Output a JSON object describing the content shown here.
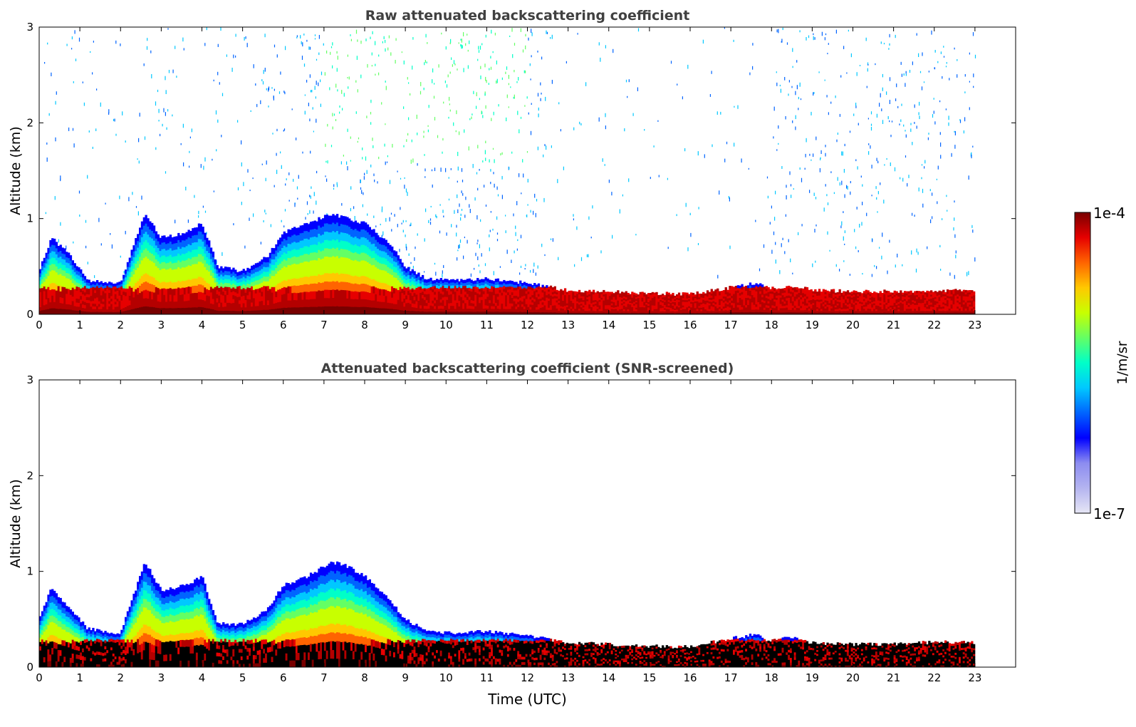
{
  "chart_data": [
    {
      "type": "heatmap",
      "title": "Raw attenuated backscattering coefficient",
      "xlabel": "",
      "ylabel": "Altitude (km)",
      "xlim": [
        0,
        24
      ],
      "ylim": [
        0,
        3
      ],
      "xticks": [
        "0",
        "1",
        "2",
        "3",
        "4",
        "5",
        "6",
        "7",
        "8",
        "9",
        "10",
        "11",
        "12",
        "13",
        "14",
        "15",
        "16",
        "17",
        "18",
        "19",
        "20",
        "21",
        "22",
        "23"
      ],
      "yticks": [
        "0",
        "1",
        "2",
        "3"
      ],
      "data_end_hour": 23,
      "boundary_layer_top_km": [
        [
          0,
          0.45
        ],
        [
          0.3,
          0.8
        ],
        [
          0.8,
          0.6
        ],
        [
          1.2,
          0.35
        ],
        [
          2,
          0.33
        ],
        [
          2.6,
          1.05
        ],
        [
          3,
          0.8
        ],
        [
          3.6,
          0.85
        ],
        [
          4,
          0.95
        ],
        [
          4.4,
          0.5
        ],
        [
          5,
          0.45
        ],
        [
          5.6,
          0.6
        ],
        [
          6,
          0.85
        ],
        [
          6.6,
          0.95
        ],
        [
          7.2,
          1.05
        ],
        [
          7.6,
          1.0
        ],
        [
          8,
          0.95
        ],
        [
          8.6,
          0.75
        ],
        [
          9,
          0.5
        ],
        [
          9.5,
          0.38
        ],
        [
          10,
          0.36
        ],
        [
          11,
          0.37
        ],
        [
          12,
          0.33
        ],
        [
          13,
          0.25
        ],
        [
          14,
          0.24
        ],
        [
          15,
          0.22
        ],
        [
          16,
          0.21
        ],
        [
          17,
          0.28
        ],
        [
          17.6,
          0.33
        ],
        [
          18,
          0.27
        ],
        [
          18.6,
          0.3
        ],
        [
          19,
          0.25
        ],
        [
          20,
          0.24
        ],
        [
          21,
          0.24
        ],
        [
          22,
          0.25
        ],
        [
          23,
          0.25
        ]
      ],
      "notes": [
        "Noisy upper-level signal 0.5–3 km between ~6 h and ~12 h",
        "Dense near-surface layer below ~0.3 km"
      ]
    },
    {
      "type": "heatmap",
      "title": "Attenuated backscattering coefficient (SNR-screened)",
      "xlabel": "Time (UTC)",
      "ylabel": "Altitude (km)",
      "xlim": [
        0,
        24
      ],
      "ylim": [
        0,
        3
      ],
      "xticks": [
        "0",
        "1",
        "2",
        "3",
        "4",
        "5",
        "6",
        "7",
        "8",
        "9",
        "10",
        "11",
        "12",
        "13",
        "14",
        "15",
        "16",
        "17",
        "18",
        "19",
        "20",
        "21",
        "22",
        "23"
      ],
      "yticks": [
        "0",
        "1",
        "2",
        "3"
      ],
      "data_end_hour": 23,
      "boundary_layer_top_km": [
        [
          0,
          0.5
        ],
        [
          0.3,
          0.82
        ],
        [
          0.8,
          0.6
        ],
        [
          1.2,
          0.4
        ],
        [
          2,
          0.35
        ],
        [
          2.6,
          1.1
        ],
        [
          3,
          0.8
        ],
        [
          3.6,
          0.85
        ],
        [
          4,
          0.95
        ],
        [
          4.4,
          0.45
        ],
        [
          5,
          0.45
        ],
        [
          5.6,
          0.6
        ],
        [
          6,
          0.85
        ],
        [
          6.6,
          0.95
        ],
        [
          7.2,
          1.1
        ],
        [
          7.6,
          1.05
        ],
        [
          8,
          0.95
        ],
        [
          8.6,
          0.7
        ],
        [
          9,
          0.5
        ],
        [
          9.5,
          0.38
        ],
        [
          10,
          0.36
        ],
        [
          11,
          0.37
        ],
        [
          12,
          0.33
        ],
        [
          13,
          0.25
        ],
        [
          14,
          0.24
        ],
        [
          15,
          0.22
        ],
        [
          16,
          0.21
        ],
        [
          17,
          0.3
        ],
        [
          17.6,
          0.34
        ],
        [
          18,
          0.27
        ],
        [
          18.6,
          0.32
        ],
        [
          19,
          0.25
        ],
        [
          20,
          0.24
        ],
        [
          21,
          0.24
        ],
        [
          22,
          0.26
        ],
        [
          23,
          0.26
        ]
      ],
      "notes": [
        "Upper-level noise removed",
        "Near-surface layer saturates to black"
      ]
    }
  ],
  "colorbar": {
    "label": "1/m/sr",
    "max_label": "1e-4",
    "min_label": "1e-7",
    "colors": [
      "#e6e6f5",
      "#b4b4f0",
      "#8c8cf0",
      "#0000ff",
      "#0064ff",
      "#00c8ff",
      "#00ffc8",
      "#64ff64",
      "#c8ff00",
      "#ffc800",
      "#ff6400",
      "#e60000",
      "#780000"
    ]
  }
}
